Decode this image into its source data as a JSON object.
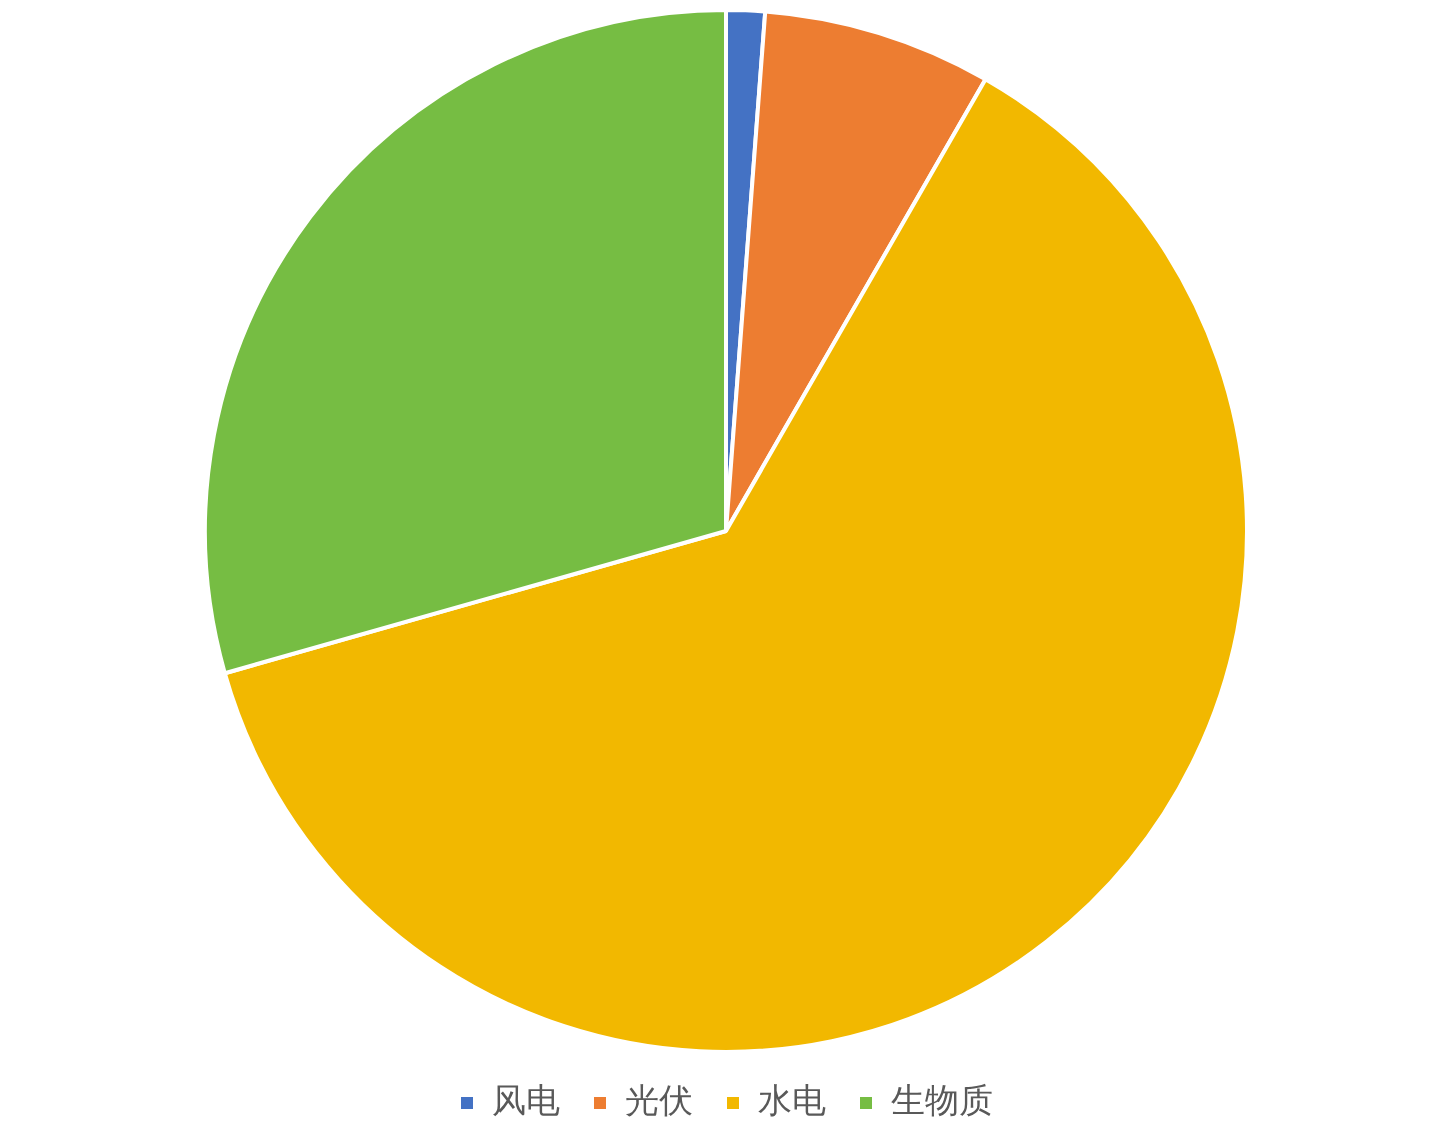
{
  "chart_data": {
    "type": "pie",
    "categories": [
      "风电",
      "光伏",
      "水电",
      "生物质"
    ],
    "values": [
      1.2,
      7.1,
      62.3,
      29.4
    ],
    "colors": [
      "#4472c4",
      "#ed7d31",
      "#f2b800",
      "#76bd43"
    ],
    "legend": "bottom"
  }
}
